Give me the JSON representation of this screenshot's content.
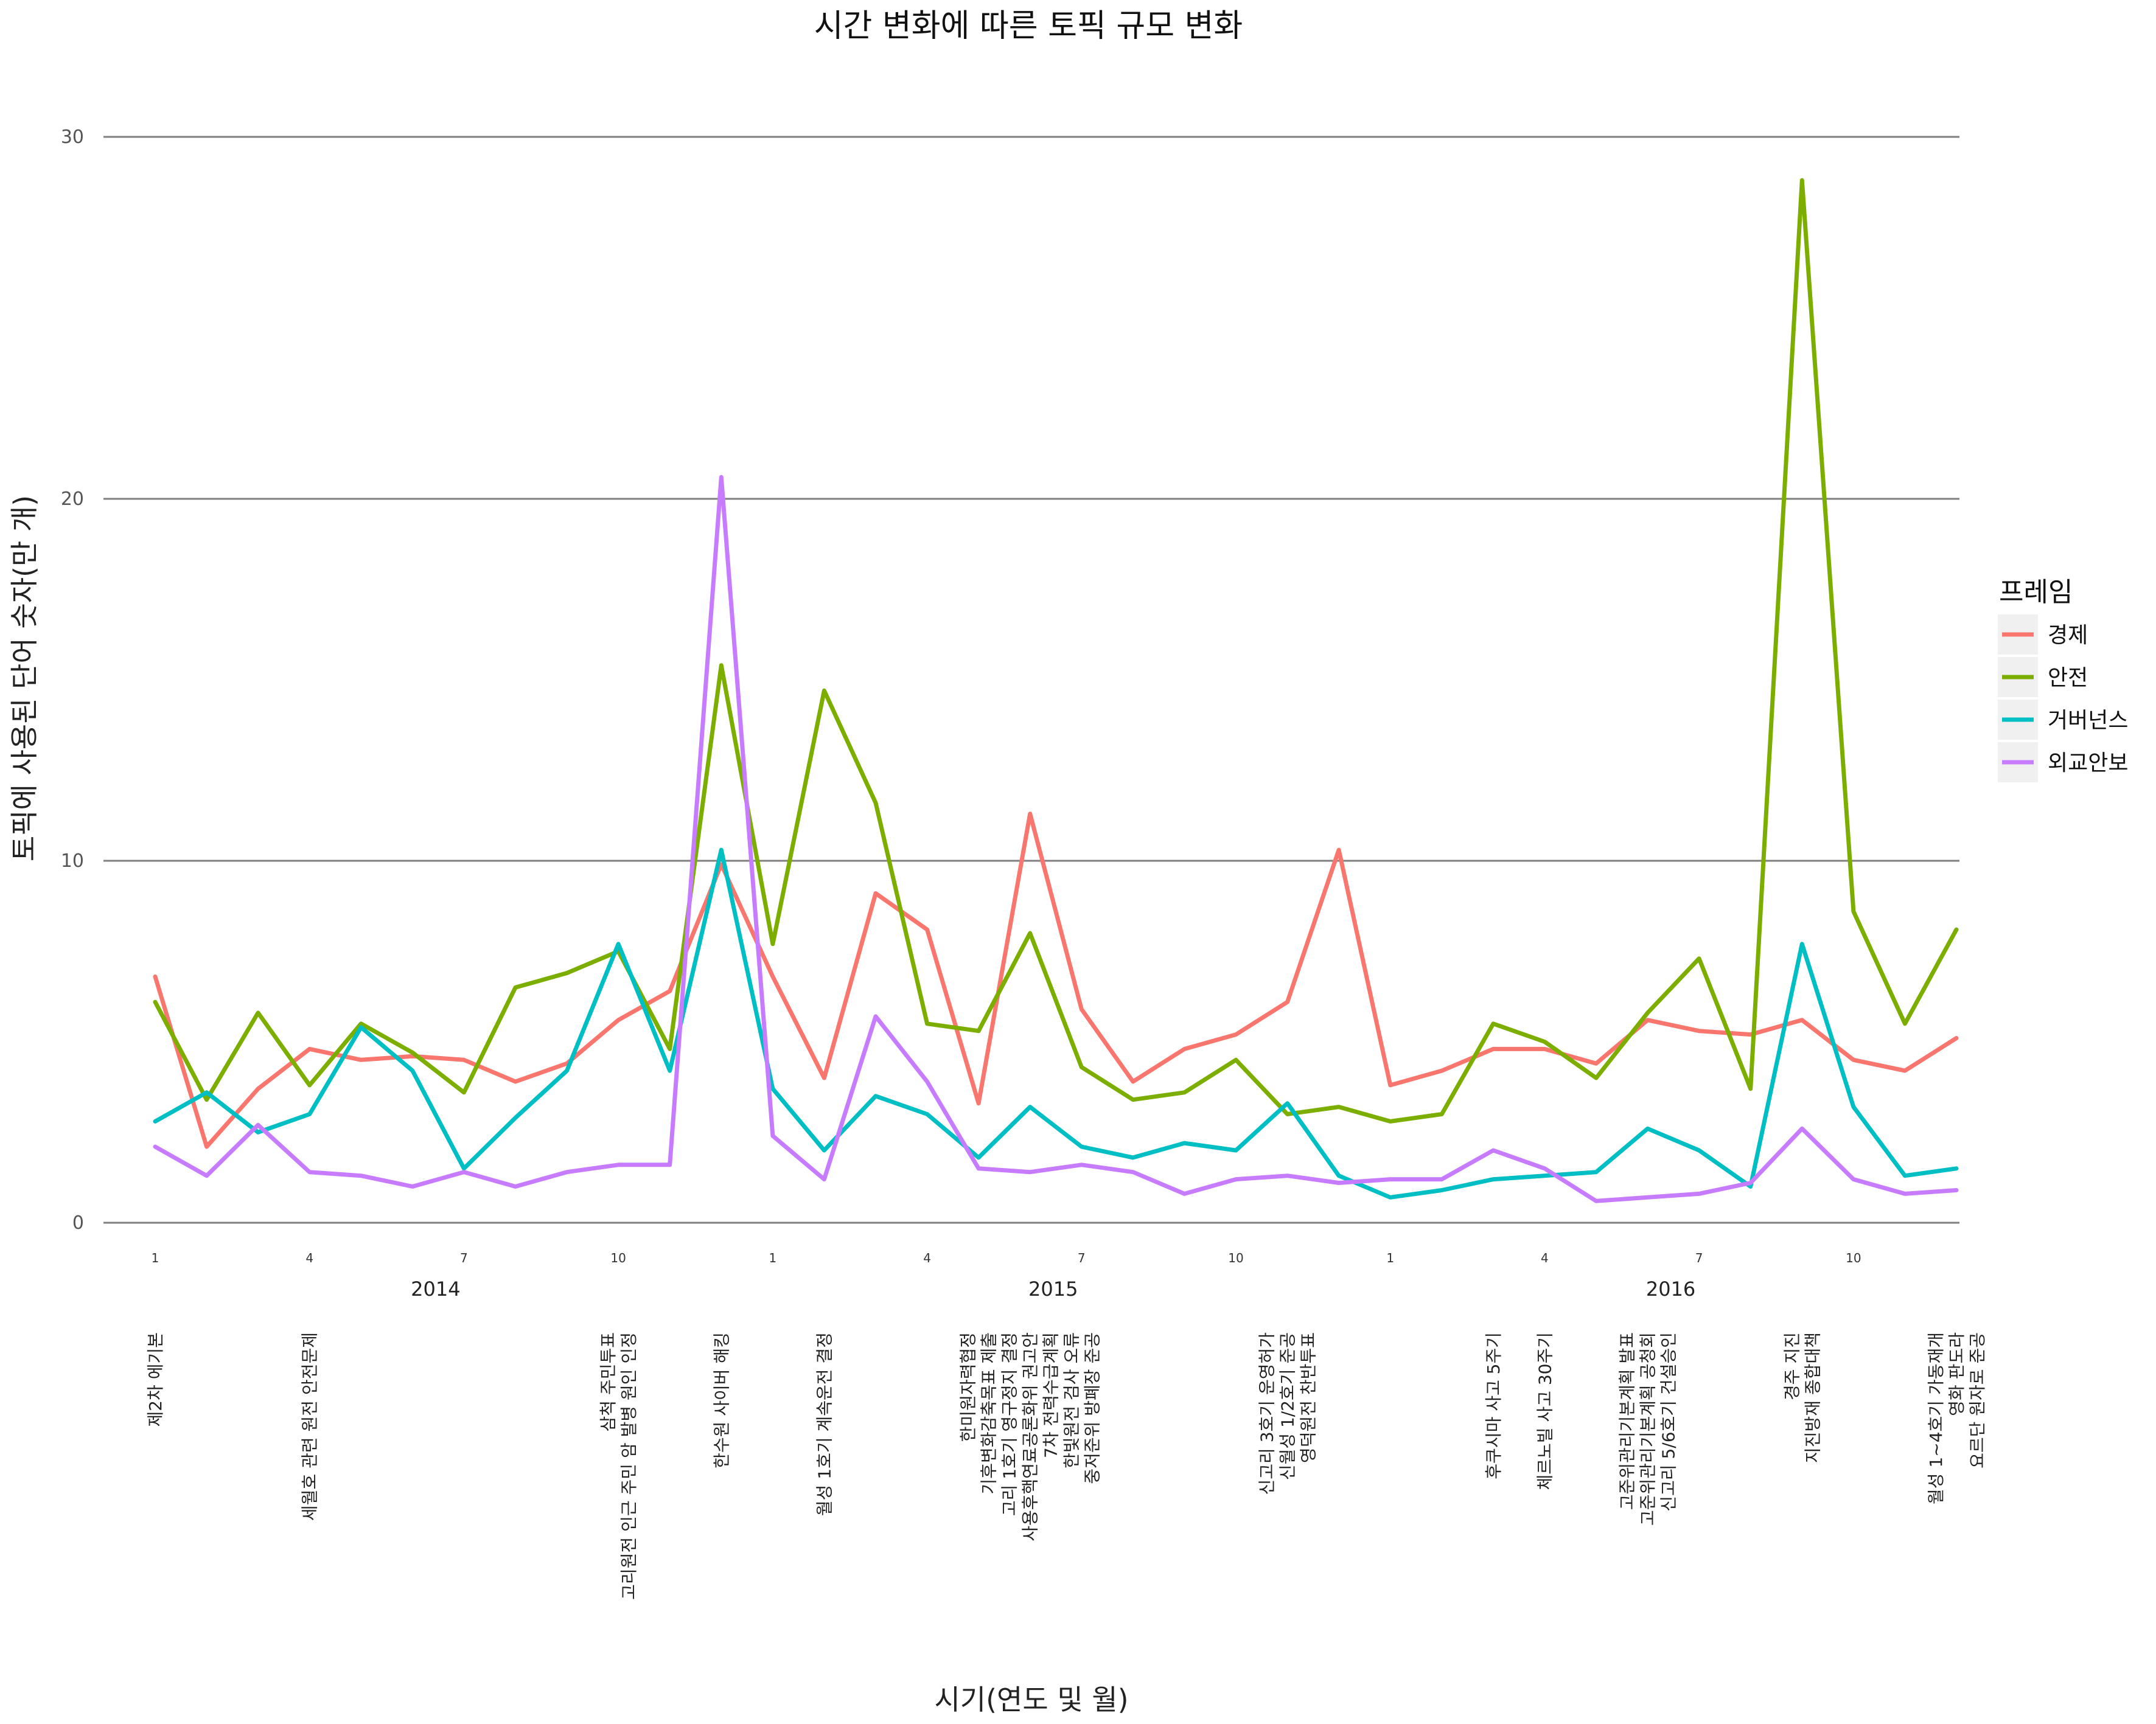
{
  "chart_data": {
    "type": "line",
    "title": "시간 변화에 따른 토픽 규모 변화",
    "xlabel": "시기(연도 및 월)",
    "ylabel": "토픽에 사용된 단어 숫자(만 개)",
    "ylim": [
      0,
      30
    ],
    "yticks": [
      "0",
      "10",
      "20",
      "30"
    ],
    "grid": "horizontal major lines only",
    "legend_title": "프레임",
    "legend_position": "right",
    "months": [
      "2014-01",
      "2014-02",
      "2014-03",
      "2014-04",
      "2014-05",
      "2014-06",
      "2014-07",
      "2014-08",
      "2014-09",
      "2014-10",
      "2014-11",
      "2014-12",
      "2015-01",
      "2015-02",
      "2015-03",
      "2015-04",
      "2015-05",
      "2015-06",
      "2015-07",
      "2015-08",
      "2015-09",
      "2015-10",
      "2015-11",
      "2015-12",
      "2016-01",
      "2016-02",
      "2016-03",
      "2016-04",
      "2016-05",
      "2016-06",
      "2016-07",
      "2016-08",
      "2016-09",
      "2016-10",
      "2016-11",
      "2016-12"
    ],
    "month_tick_labels": [
      {
        "month": "2014-01",
        "label": "1"
      },
      {
        "month": "2014-04",
        "label": "4"
      },
      {
        "month": "2014-07",
        "label": "7"
      },
      {
        "month": "2014-10",
        "label": "10"
      },
      {
        "month": "2015-01",
        "label": "1"
      },
      {
        "month": "2015-04",
        "label": "4"
      },
      {
        "month": "2015-07",
        "label": "7"
      },
      {
        "month": "2015-10",
        "label": "10"
      },
      {
        "month": "2016-01",
        "label": "1"
      },
      {
        "month": "2016-04",
        "label": "4"
      },
      {
        "month": "2016-07",
        "label": "7"
      },
      {
        "month": "2016-10",
        "label": "10"
      }
    ],
    "year_labels": [
      {
        "label": "2014",
        "at_month": "2014-06"
      },
      {
        "label": "2015",
        "at_month": "2015-06"
      },
      {
        "label": "2016",
        "at_month": "2016-06"
      }
    ],
    "series": [
      {
        "name": "경제",
        "color": "#F8766D",
        "values": [
          6.8,
          2.1,
          3.7,
          4.8,
          4.5,
          4.6,
          4.5,
          3.9,
          4.4,
          5.6,
          6.4,
          9.9,
          6.8,
          4.0,
          9.1,
          8.1,
          3.3,
          11.3,
          5.9,
          3.9,
          4.8,
          5.2,
          6.1,
          10.3,
          3.8,
          4.2,
          4.8,
          4.8,
          4.4,
          5.6,
          5.3,
          5.2,
          5.6,
          4.5,
          4.2,
          5.1
        ]
      },
      {
        "name": "안전",
        "color": "#7CAE00",
        "values": [
          6.1,
          3.4,
          5.8,
          3.8,
          5.5,
          4.7,
          3.6,
          6.5,
          6.9,
          7.5,
          4.8,
          15.4,
          7.7,
          14.7,
          11.6,
          5.5,
          5.3,
          8.0,
          4.3,
          3.4,
          3.6,
          4.5,
          3.0,
          3.2,
          2.8,
          3.0,
          5.5,
          5.0,
          4.0,
          5.8,
          7.3,
          3.7,
          28.8,
          8.6,
          5.5,
          8.1
        ]
      },
      {
        "name": "거버넌스",
        "color": "#00BFC4",
        "values": [
          2.8,
          3.6,
          2.5,
          3.0,
          5.4,
          4.2,
          1.5,
          2.9,
          4.2,
          7.7,
          4.2,
          10.3,
          3.7,
          2.0,
          3.5,
          3.0,
          1.8,
          3.2,
          2.1,
          1.8,
          2.2,
          2.0,
          3.3,
          1.3,
          0.7,
          0.9,
          1.2,
          1.3,
          1.4,
          2.6,
          2.0,
          1.0,
          7.7,
          3.2,
          1.3,
          1.5
        ]
      },
      {
        "name": "외교안보",
        "color": "#C77CFF",
        "values": [
          2.1,
          1.3,
          2.7,
          1.4,
          1.3,
          1.0,
          1.4,
          1.0,
          1.4,
          1.6,
          1.6,
          20.6,
          2.4,
          1.2,
          5.7,
          3.9,
          1.5,
          1.4,
          1.6,
          1.4,
          0.8,
          1.2,
          1.3,
          1.1,
          1.2,
          1.2,
          2.0,
          1.5,
          0.6,
          0.7,
          0.8,
          1.1,
          2.6,
          1.2,
          0.8,
          0.9
        ]
      }
    ],
    "event_annotations": [
      {
        "month": "2014-01",
        "lines": [
          "제2차 에기본"
        ]
      },
      {
        "month": "2014-04",
        "lines": [
          "세월호 관련 원전 안전문제"
        ]
      },
      {
        "month": "2014-10",
        "lines": [
          "삼척 주민투표",
          "고리원전 인근 주민 암 발병 원인 인정"
        ]
      },
      {
        "month": "2014-12",
        "lines": [
          "한수원 사이버 해킹"
        ]
      },
      {
        "month": "2015-02",
        "lines": [
          "월성 1호기 계속운전 결정"
        ]
      },
      {
        "month": "2015-06",
        "lines": [
          "한미원자력협정",
          "기후변화감축목표 제출",
          "고리 1호기 영구정지 결정",
          "사용후핵연료공론화위 권고안",
          "7차 전력수급계획",
          "한빛원전 검사 오류",
          "중저준위 방폐장 준공"
        ]
      },
      {
        "month": "2015-11",
        "lines": [
          "신고리 3호기 운영허가",
          "신월성 1/2호기 준공",
          "영덕원전 찬반투표"
        ]
      },
      {
        "month": "2016-03",
        "lines": [
          "후쿠시마 사고 5주기"
        ]
      },
      {
        "month": "2016-04",
        "lines": [
          "체르노빌 사고 30주기"
        ]
      },
      {
        "month": "2016-06",
        "lines": [
          "고준위관리기본계획 발표",
          "고준위관리기본계획 공청회",
          "신고리 5/6호기 건설승인"
        ]
      },
      {
        "month": "2016-09",
        "lines": [
          "경주 지진",
          "지진방재 종합대책"
        ]
      },
      {
        "month": "2016-12",
        "lines": [
          "월성 1~4호기 가동재개",
          "영화 판도라",
          "요르단 원자로 준공"
        ]
      }
    ]
  }
}
